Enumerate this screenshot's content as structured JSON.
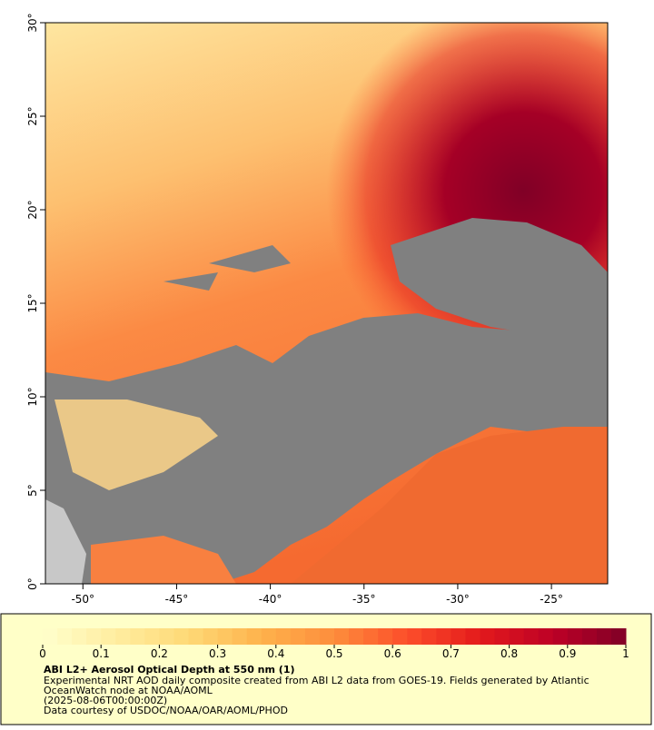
{
  "chart_data": {
    "type": "map",
    "xlim": [
      -52,
      -22
    ],
    "ylim": [
      0,
      30
    ],
    "xticks": [
      {
        "value": -50,
        "label": "-50°"
      },
      {
        "value": -45,
        "label": "-45°"
      },
      {
        "value": -40,
        "label": "-40°"
      },
      {
        "value": -35,
        "label": "-35°"
      },
      {
        "value": -30,
        "label": "-30°"
      },
      {
        "value": -25,
        "label": "-25°"
      }
    ],
    "yticks": [
      {
        "value": 0,
        "label": "0°"
      },
      {
        "value": 5,
        "label": "5°"
      },
      {
        "value": 10,
        "label": "10°"
      },
      {
        "value": 15,
        "label": "15°"
      },
      {
        "value": 20,
        "label": "20°"
      },
      {
        "value": 25,
        "label": "25°"
      },
      {
        "value": 30,
        "label": "30°"
      }
    ],
    "colorbar": {
      "clim": [
        0,
        1
      ],
      "ticks": [
        0,
        0.1,
        0.2,
        0.3,
        0.4,
        0.5,
        0.6,
        0.7,
        0.8,
        0.9,
        1
      ],
      "colormap": [
        "#ffffcc",
        "#ffeda0",
        "#fed976",
        "#feb24c",
        "#fd8d3c",
        "#fc4e2a",
        "#e31a1c",
        "#bd0026",
        "#800026"
      ]
    },
    "title": "ABI L2+ Aerosol Optical Depth at 550 nm (1)",
    "description": [
      "Experimental NRT AOD daily composite created from ABI L2 data from GOES-19. Fields generated by Atlantic",
      "OceanWatch node at NOAA/AOML",
      "(2025-08-06T00:00:00Z)",
      "Data courtesy of USDOC/NOAA/OAR/AOML/PHOD"
    ]
  }
}
